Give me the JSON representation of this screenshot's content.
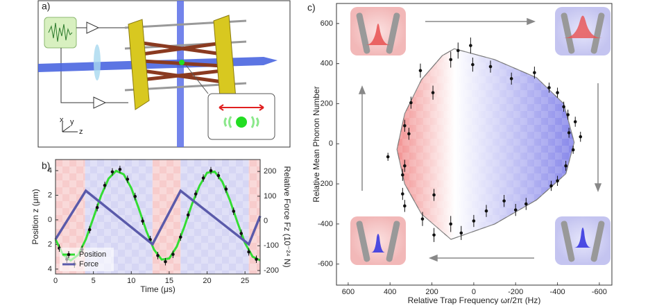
{
  "diagram": {
    "label": "a)",
    "axes": [
      "x",
      "y",
      "z"
    ]
  },
  "chart_data": [
    {
      "type": "line",
      "panel_label": "b)",
      "xlabel": "Time (μs)",
      "ylabel": "Position z (μm)",
      "y2label": "Relative Force Fz (10⁻²⁴ N)",
      "xlim": [
        0,
        27
      ],
      "xticks": [
        0,
        5,
        10,
        15,
        20,
        25
      ],
      "ylim": [
        -4.4,
        4.9
      ],
      "yticks": [
        {
          "value": 4,
          "label": "4"
        },
        2,
        0,
        {
          "value": -2,
          "label": "2"
        },
        {
          "value": -4,
          "label": "4"
        }
      ],
      "y2lim": [
        -214,
        248
      ],
      "y2ticks": [
        200,
        100,
        0,
        -100,
        -200
      ],
      "legend": "lower left",
      "shaded_regions": [
        {
          "start": 0,
          "end": 3.9,
          "color": "#f7cccc"
        },
        {
          "start": 3.9,
          "end": 12.8,
          "color": "#d6d6f4"
        },
        {
          "start": 12.8,
          "end": 16.5,
          "color": "#f7cccc"
        },
        {
          "start": 16.5,
          "end": 25.5,
          "color": "#d6d6f4"
        },
        {
          "start": 25.5,
          "end": 27,
          "color": "#f7cccc"
        }
      ],
      "series": [
        {
          "name": "Position",
          "color": "#111111",
          "x": [
            0.5,
            1.5,
            2.5,
            3.5,
            4.5,
            5.5,
            6.5,
            7.5,
            8.5,
            9.5,
            10.5,
            11.5,
            12.5,
            13.5,
            14.5,
            15.5,
            16.5,
            17.5,
            18.5,
            19.5,
            20.5,
            21.5,
            22.5,
            23.5,
            24.5,
            25.5,
            26.5
          ],
          "values": [
            -2.3,
            -3.2,
            -3.6,
            -2.4,
            -0.8,
            1.0,
            2.8,
            3.9,
            4.1,
            3.3,
            1.9,
            -0.1,
            -1.6,
            -2.9,
            -3.4,
            -2.8,
            -1.4,
            0.4,
            2.1,
            3.4,
            4.0,
            3.6,
            2.5,
            0.7,
            -1.1,
            -2.6,
            -3.2
          ],
          "errors": [
            0.3,
            0.3,
            0.3,
            0.3,
            0.3,
            0.3,
            0.3,
            0.3,
            0.3,
            0.3,
            0.3,
            0.3,
            0.3,
            0.3,
            0.3,
            0.3,
            0.3,
            0.3,
            0.3,
            0.3,
            0.3,
            0.3,
            0.3,
            0.3,
            0.3,
            0.3,
            0.3
          ],
          "fit": {
            "color": "#33dd33",
            "x": [
              0,
              1,
              2,
              3,
              4,
              5,
              6,
              7,
              8,
              9,
              10,
              11,
              12,
              13,
              14,
              15,
              16,
              17,
              18,
              19,
              20,
              21,
              22,
              23,
              24,
              25,
              26,
              27
            ],
            "values": [
              -1.58,
              -2.84,
              -3.3,
              -2.84,
              -1.58,
              0.16,
              1.96,
              3.35,
              3.98,
              3.7,
              2.58,
              0.9,
              -0.92,
              -2.42,
              -3.23,
              -3.14,
              -2.17,
              -0.57,
              1.27,
              2.77,
              3.83,
              3.92,
              3.11,
              1.61,
              -0.19,
              -1.88,
              -2.99,
              -3.29
            ]
          }
        },
        {
          "name": "Force",
          "color": "#5a5aaa",
          "axis": "y2",
          "x": [
            0,
            4,
            12.8,
            16.5,
            25.5,
            27
          ],
          "values": [
            -74,
            122,
            -94,
            122,
            -94,
            20
          ]
        }
      ]
    },
    {
      "type": "scatter",
      "panel_label": "c)",
      "xlabel": "Relative Trap Frequency ωr/2π (Hz)",
      "ylabel": "Relative Mean Phonon Number",
      "xlim": [
        656,
        -660
      ],
      "xticks": [
        600,
        400,
        200,
        0,
        -200,
        -400,
        -600
      ],
      "ylim": [
        -705,
        700
      ],
      "yticks": [
        600,
        400,
        200,
        0,
        -200,
        -400,
        -600
      ],
      "envelope": {
        "x": [
          367,
          330,
          250,
          150,
          93,
          -100,
          -300,
          -430,
          -480,
          -440,
          -300,
          -100,
          109,
          250,
          330,
          367
        ],
        "y": [
          -28,
          150,
          320,
          440,
          474,
          420,
          330,
          200,
          7,
          -150,
          -280,
          -400,
          -477,
          -350,
          -200,
          -28
        ]
      },
      "series": [
        {
          "color": "#111111",
          "x": [
            330,
            310,
            300,
            255,
            195,
            110,
            75,
            15,
            5,
            -80,
            -180,
            -290,
            -360,
            -400,
            -430,
            -450,
            -455,
            -485,
            -510,
            -475,
            -440,
            -400,
            -370,
            -250,
            -200,
            -145,
            -60,
            0,
            60,
            110,
            190,
            190,
            245,
            330,
            340,
            340,
            330,
            410
          ],
          "values": [
            90,
            50,
            205,
            365,
            255,
            420,
            465,
            490,
            395,
            385,
            325,
            355,
            280,
            255,
            185,
            145,
            55,
            110,
            35,
            -30,
            -110,
            -185,
            -210,
            -300,
            -330,
            -285,
            -335,
            -385,
            -445,
            -400,
            -455,
            -255,
            -375,
            -310,
            -250,
            -155,
            -110,
            -65
          ],
          "errors": [
            30,
            30,
            30,
            35,
            35,
            40,
            40,
            40,
            35,
            30,
            30,
            30,
            25,
            25,
            25,
            25,
            25,
            25,
            25,
            20,
            25,
            25,
            25,
            30,
            30,
            30,
            30,
            30,
            35,
            40,
            35,
            30,
            35,
            30,
            30,
            30,
            30,
            20
          ]
        }
      ]
    }
  ]
}
